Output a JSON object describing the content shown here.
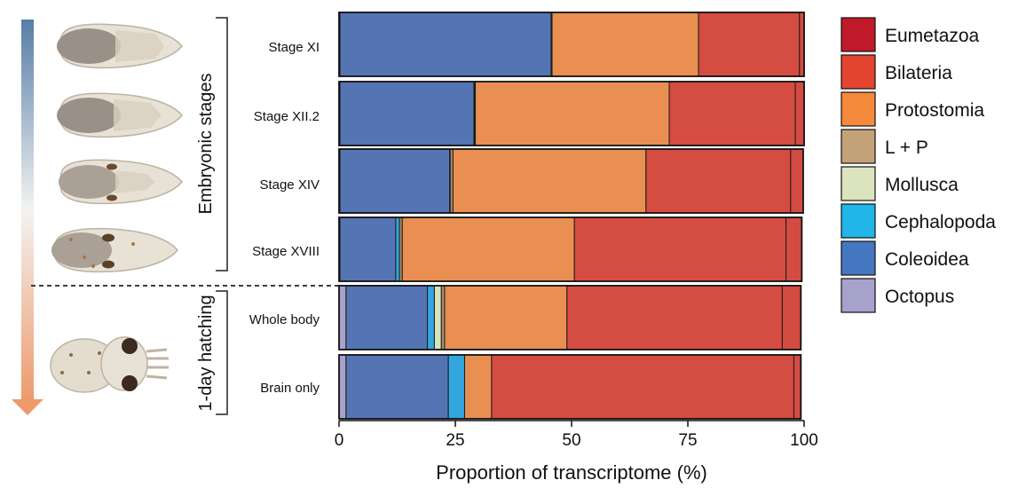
{
  "chart_data": {
    "type": "bar",
    "orientation": "horizontal",
    "stacked": true,
    "xlabel": "Proportion of transcriptome (%)",
    "xlim": [
      0,
      100
    ],
    "xticks": [
      "0",
      "25",
      "50",
      "75",
      "100"
    ],
    "groups": [
      {
        "label": "Embryonic stages",
        "categories": [
          "Stage XI",
          "Stage XII.2",
          "Stage XIV",
          "Stage XVIII"
        ]
      },
      {
        "label": "1-day hatching",
        "categories": [
          "Whole body",
          "Brain only"
        ]
      }
    ],
    "categories": [
      "Stage XI",
      "Stage XII.2",
      "Stage XIV",
      "Stage XVIII",
      "Whole body",
      "Brain only"
    ],
    "series": [
      {
        "name": "Octopus",
        "color": "#a6a2cb",
        "values": [
          0.2,
          0.2,
          0.2,
          0.2,
          1.5,
          1.5
        ]
      },
      {
        "name": "Coleoidea",
        "color": "#5574b4",
        "values": [
          45.4,
          28.8,
          23.6,
          12.0,
          17.5,
          22.0
        ]
      },
      {
        "name": "Cephalopoda",
        "color": "#33a6df",
        "values": [
          0.0,
          0.1,
          0.1,
          0.8,
          1.5,
          3.5
        ]
      },
      {
        "name": "Mollusca",
        "color": "#d6e3bb",
        "values": [
          0.0,
          0.0,
          0.0,
          0.0,
          1.5,
          0.0
        ]
      },
      {
        "name": "L + P",
        "color": "#a98f68",
        "values": [
          0.2,
          0.2,
          0.6,
          0.6,
          0.7,
          0.0
        ]
      },
      {
        "name": "Protostomia",
        "color": "#e88f51",
        "values": [
          31.5,
          41.7,
          41.5,
          37.0,
          26.3,
          5.8
        ]
      },
      {
        "name": "Bilateria",
        "color": "#d54c42",
        "values": [
          21.7,
          27.1,
          31.1,
          45.5,
          46.3,
          65.0
        ]
      },
      {
        "name": "Eumetazoa",
        "color": "#d44b41",
        "values": [
          1.0,
          1.9,
          2.7,
          3.4,
          4.0,
          1.5
        ]
      }
    ],
    "legend": {
      "position": "right",
      "entries": [
        {
          "label": "Eumetazoa",
          "color": "#c01a2a"
        },
        {
          "label": "Bilateria",
          "color": "#e34530"
        },
        {
          "label": "Protostomia",
          "color": "#f58a3c"
        },
        {
          "label": "L + P",
          "color": "#c3a278"
        },
        {
          "label": "Mollusca",
          "color": "#dbe4bd"
        },
        {
          "label": "Cephalopoda",
          "color": "#21b5ea"
        },
        {
          "label": "Coleoidea",
          "color": "#4477c0"
        },
        {
          "label": "Octopus",
          "color": "#a6a2cb"
        }
      ]
    },
    "arrow": {
      "color_top": "#577da6",
      "color_bottom": "#ee9a6c"
    }
  }
}
